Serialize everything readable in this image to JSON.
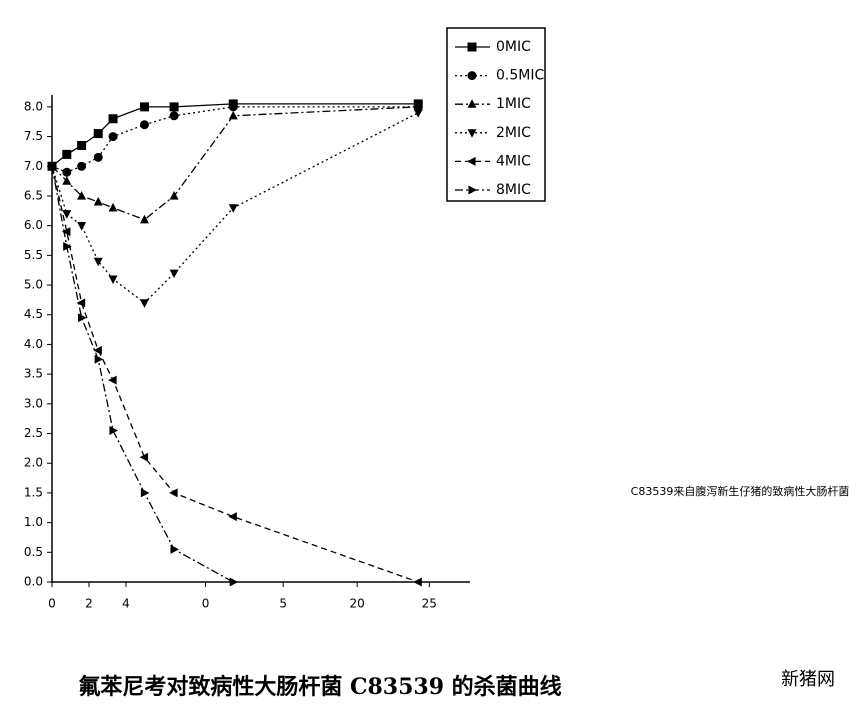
{
  "chart_data": {
    "type": "line",
    "title": "氟苯尼考对致病性大肠杆菌 C83539 的杀菌曲线",
    "annotations": [
      "C83539来自腹泻新生仔猪的致病性大肠杆菌",
      "新猪网"
    ],
    "x": [
      0,
      0.8,
      1.6,
      2.5,
      3.3,
      5,
      6.6,
      9.8,
      19.8
    ],
    "series": [
      {
        "name": "0MIC",
        "color": "#000000",
        "marker": "square",
        "dash": "solid",
        "values": [
          7.0,
          7.2,
          7.35,
          7.55,
          7.8,
          8.0,
          8.0,
          8.05,
          8.05
        ]
      },
      {
        "name": "0.5MIC",
        "color": "#000000",
        "marker": "circle",
        "dash": "dotted",
        "values": [
          7.0,
          6.9,
          7.0,
          7.15,
          7.5,
          7.7,
          7.85,
          8.0,
          8.0
        ]
      },
      {
        "name": "1MIC",
        "color": "#000000",
        "marker": "triangle-up",
        "dash": "dashdot",
        "values": [
          7.0,
          6.75,
          6.5,
          6.4,
          6.3,
          6.1,
          6.5,
          7.85,
          8.0
        ]
      },
      {
        "name": "2MIC",
        "color": "#000000",
        "marker": "triangle-down",
        "dash": "dotted",
        "values": [
          7.0,
          6.2,
          6.0,
          5.4,
          5.1,
          4.7,
          5.2,
          6.3,
          7.9
        ]
      },
      {
        "name": "4MIC",
        "color": "#000000",
        "marker": "triangle-left",
        "dash": "dashed",
        "values": [
          7.0,
          5.9,
          4.7,
          3.9,
          3.4,
          2.1,
          1.5,
          1.1,
          0.0
        ]
      },
      {
        "name": "8MIC",
        "color": "#000000",
        "marker": "triangle-right",
        "dash": "dashdot",
        "values": [
          7.0,
          5.65,
          4.45,
          3.75,
          2.55,
          1.5,
          0.55,
          0.0,
          null
        ]
      }
    ],
    "xlim": [
      0,
      22.6
    ],
    "xticks": [
      0,
      2,
      4,
      {
        "value": 8.3,
        "label": "0"
      },
      {
        "value": 12.5,
        "label": "5"
      },
      {
        "value": 16.5,
        "label": "20"
      },
      {
        "value": 20.4,
        "label": "25"
      }
    ],
    "ylim": [
      0,
      8.2
    ],
    "yticks": [
      {
        "value": 0,
        "label": "0.0"
      },
      0.5,
      {
        "value": 1,
        "label": "1.0"
      },
      1.5,
      {
        "value": 2,
        "label": "2.0"
      },
      2.5,
      {
        "value": 3,
        "label": "3.0"
      },
      3.5,
      {
        "value": 4,
        "label": "4.0"
      },
      4.5,
      {
        "value": 5,
        "label": "5.0"
      },
      5.5,
      {
        "value": 6,
        "label": "6.0"
      },
      6.5,
      {
        "value": 7,
        "label": "7.0"
      },
      7.5,
      {
        "value": 8,
        "label": "8.0"
      }
    ],
    "legend": "top-right",
    "grid": false
  }
}
